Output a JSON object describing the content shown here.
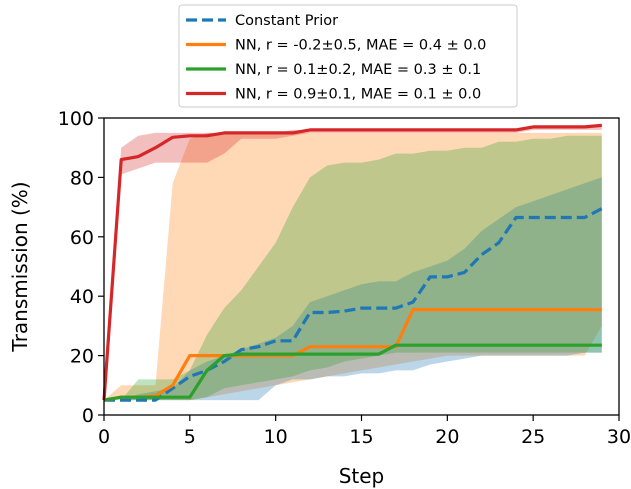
{
  "chart_data": {
    "type": "line",
    "xlabel": "Step",
    "ylabel": "Transmission (%)",
    "xlim": [
      0,
      30
    ],
    "ylim": [
      0,
      100
    ],
    "xticks": [
      "0",
      "5",
      "10",
      "15",
      "20",
      "25",
      "30"
    ],
    "yticks": [
      "0",
      "20",
      "40",
      "60",
      "80",
      "100"
    ],
    "grid": false,
    "legend_position": "above plot, centered",
    "colors": {
      "blue": "#1f77b4",
      "orange": "#ff7f0e",
      "green": "#2ca02c",
      "red": "#d62728"
    },
    "series": [
      {
        "name": "Constant Prior",
        "color": "#1f77b4",
        "style": "dashed",
        "x": [
          0,
          1,
          2,
          3,
          4,
          5,
          6,
          7,
          8,
          9,
          10,
          11,
          12,
          13,
          14,
          15,
          16,
          17,
          18,
          19,
          20,
          21,
          22,
          23,
          24,
          25,
          26,
          27,
          28,
          29
        ],
        "values": [
          5,
          5,
          5,
          5,
          9,
          13,
          15,
          18,
          22,
          23,
          25,
          25,
          34.5,
          34.5,
          35,
          36,
          36,
          36,
          38,
          46.5,
          46.5,
          48,
          54,
          58,
          66.5,
          66.5,
          66.5,
          66.5,
          66.5,
          69.5
        ],
        "band_low": [
          5,
          5,
          5,
          5,
          5,
          5,
          5,
          5,
          5,
          5,
          10,
          12,
          12,
          13,
          13,
          14,
          14,
          15,
          15,
          17,
          18,
          19,
          20,
          20,
          20,
          20,
          20,
          20,
          21,
          21
        ],
        "band_high": [
          5,
          5,
          7,
          8,
          9,
          15,
          18,
          20,
          22,
          24,
          26,
          30,
          38,
          40,
          42,
          44,
          45,
          45,
          48,
          50,
          52,
          56,
          62,
          66,
          70,
          72,
          74,
          76,
          78,
          80
        ]
      },
      {
        "name": "NN, r = -0.2±0.5, MAE = 0.4 ± 0.0",
        "color": "#ff7f0e",
        "style": "solid",
        "x": [
          0,
          1,
          2,
          3,
          4,
          5,
          6,
          7,
          8,
          9,
          10,
          11,
          12,
          13,
          14,
          15,
          16,
          17,
          18,
          19,
          20,
          21,
          22,
          23,
          24,
          25,
          26,
          27,
          28,
          29
        ],
        "values": [
          5,
          6,
          6,
          6.5,
          10,
          20,
          20,
          20,
          20,
          20,
          20,
          20,
          23,
          23,
          23,
          23,
          23,
          23,
          35.5,
          35.5,
          35.5,
          35.5,
          35.5,
          35.5,
          35.5,
          35.5,
          35.5,
          35.5,
          35.5,
          35.5
        ],
        "band_low": [
          5,
          5,
          5,
          5,
          5,
          5,
          6,
          7,
          8,
          9,
          10,
          11,
          12,
          13,
          14,
          15,
          16,
          17,
          18,
          19,
          20,
          20,
          20,
          20,
          20,
          20,
          20,
          20,
          20,
          30
        ],
        "band_high": [
          5,
          10,
          10,
          10,
          78,
          93,
          95,
          95,
          95,
          95,
          95,
          95,
          95,
          95,
          95,
          95,
          95,
          95,
          95,
          95,
          95,
          95,
          95,
          95,
          95,
          95,
          95,
          95,
          95,
          95
        ]
      },
      {
        "name": "NN, r = 0.1±0.2, MAE = 0.3 ± 0.1",
        "color": "#2ca02c",
        "style": "solid",
        "x": [
          0,
          1,
          2,
          3,
          4,
          5,
          6,
          7,
          8,
          9,
          10,
          11,
          12,
          13,
          14,
          15,
          16,
          17,
          18,
          19,
          20,
          21,
          22,
          23,
          24,
          25,
          26,
          27,
          28,
          29
        ],
        "values": [
          5,
          6,
          6,
          6,
          6,
          6,
          15,
          20,
          20.5,
          20.5,
          20.5,
          20.5,
          20.5,
          20.5,
          20.5,
          20.5,
          20.5,
          23.5,
          23.5,
          23.5,
          23.5,
          23.5,
          23.5,
          23.5,
          23.5,
          23.5,
          23.5,
          23.5,
          23.5,
          23.5
        ],
        "band_low": [
          5,
          5,
          5,
          5,
          5,
          5,
          6,
          9,
          10,
          11,
          12,
          13,
          15,
          16,
          18,
          19,
          20,
          21,
          21,
          21,
          21,
          21,
          21,
          21,
          21,
          21,
          21,
          21,
          21,
          21
        ],
        "band_high": [
          5,
          5,
          12,
          12,
          12,
          15,
          27,
          36,
          42,
          50,
          58,
          70,
          80,
          84,
          85,
          85,
          86,
          88,
          88,
          89,
          89,
          90,
          90,
          92,
          92,
          93,
          93,
          94,
          94,
          94
        ]
      },
      {
        "name": "NN, r = 0.9±0.1, MAE = 0.1 ± 0.0",
        "color": "#d62728",
        "style": "solid",
        "x": [
          0,
          1,
          2,
          3,
          4,
          5,
          6,
          7,
          8,
          9,
          10,
          11,
          12,
          13,
          14,
          15,
          16,
          17,
          18,
          19,
          20,
          21,
          22,
          23,
          24,
          25,
          26,
          27,
          28,
          29
        ],
        "values": [
          5,
          86,
          87,
          90,
          93.5,
          94,
          94,
          95,
          95,
          95,
          95,
          95,
          96,
          96,
          96,
          96,
          96,
          96,
          96,
          96,
          96,
          96,
          96,
          96,
          96,
          97,
          97,
          97,
          97,
          97.5
        ],
        "band_low": [
          5,
          81,
          83,
          85,
          85,
          85,
          85,
          88,
          93,
          93,
          93,
          94,
          95,
          95,
          95,
          95,
          95,
          95,
          95,
          95,
          95,
          95,
          95,
          95,
          95,
          96,
          96,
          96,
          96,
          96
        ],
        "band_high": [
          5,
          90,
          94,
          95,
          95,
          95,
          95,
          95,
          95,
          95,
          95,
          96,
          96,
          96,
          96,
          96,
          96,
          96,
          96,
          96,
          96,
          96,
          96,
          96,
          96,
          97,
          97,
          97,
          97,
          98
        ]
      }
    ]
  }
}
